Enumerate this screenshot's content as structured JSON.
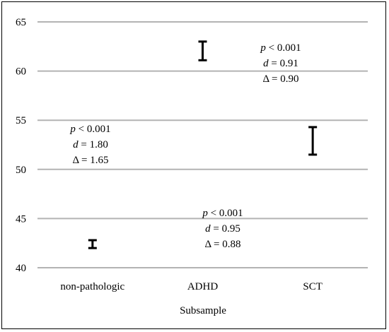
{
  "chart_data": {
    "type": "errorbar",
    "categories": [
      "non-pathologic",
      "ADHD",
      "SCT"
    ],
    "intervals": [
      {
        "category": "non-pathologic",
        "low": 42.0,
        "high": 42.8
      },
      {
        "category": "ADHD",
        "low": 61.1,
        "high": 63.0
      },
      {
        "category": "SCT",
        "low": 51.5,
        "high": 54.3
      }
    ],
    "xlabel": "Subsample",
    "ylabel": "",
    "ylim": [
      40,
      65
    ],
    "yticks": [
      "40",
      "45",
      "50",
      "55",
      "60",
      "65"
    ],
    "grid": true,
    "annotations": [
      {
        "id": "npvsadhd",
        "p_symbol": "p",
        "p_rest": " < 0.001",
        "d_symbol": "d",
        "d_rest": " = 1.80",
        "delta": "Δ = 1.65"
      },
      {
        "id": "adhdvssct",
        "p_symbol": "p",
        "p_rest": " < 0.001",
        "d_symbol": "d",
        "d_rest": " = 0.91",
        "delta": "Δ = 0.90"
      },
      {
        "id": "npvssct",
        "p_symbol": "p",
        "p_rest": " < 0.001",
        "d_symbol": "d",
        "d_rest": " = 0.95",
        "delta": "Δ = 0.88"
      }
    ]
  },
  "colors": {
    "grid": "#b3b3b3",
    "bar": "#000000",
    "text": "#000000"
  }
}
